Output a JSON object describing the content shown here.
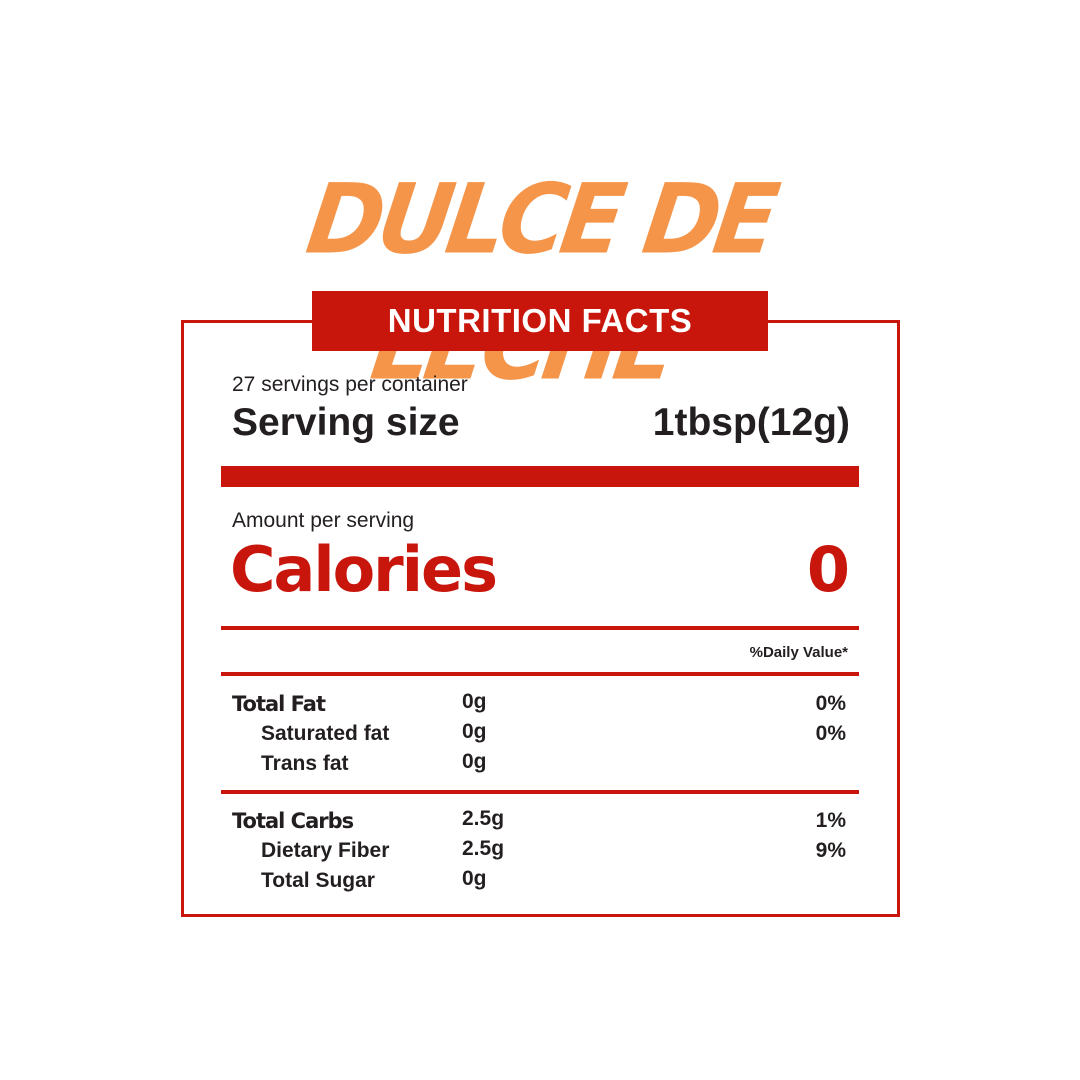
{
  "title": "DULCE DE LECHE",
  "banner": "NUTRITION FACTS",
  "servings_per_container": "27 servings per container",
  "serving_size_label": "Serving size",
  "serving_size_value": "1tbsp(12g)",
  "amount_per_serving": "Amount per serving",
  "calories_label": "Calories",
  "calories_value": "0",
  "daily_value_header": "%Daily Value*",
  "nutrients": [
    {
      "label": "Total Fat",
      "amount": "0g",
      "dv": "0%"
    },
    {
      "label": "Saturated fat",
      "amount": "0g",
      "dv": "0%"
    },
    {
      "label": "Trans fat",
      "amount": "0g",
      "dv": ""
    },
    {
      "label": "Total Carbs",
      "amount": "2.5g",
      "dv": "1%"
    },
    {
      "label": "Dietary Fiber",
      "amount": "2.5g",
      "dv": "9%"
    },
    {
      "label": "Total Sugar",
      "amount": "0g",
      "dv": ""
    }
  ],
  "colors": {
    "accent_red": "#c8160c",
    "title_orange": "#f5954a",
    "text": "#231f20"
  }
}
